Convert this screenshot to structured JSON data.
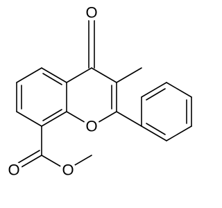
{
  "atoms": [
    {
      "label": "O"
    },
    {
      "label": "O"
    },
    {
      "label": "O"
    },
    {
      "label": "O"
    }
  ]
}
